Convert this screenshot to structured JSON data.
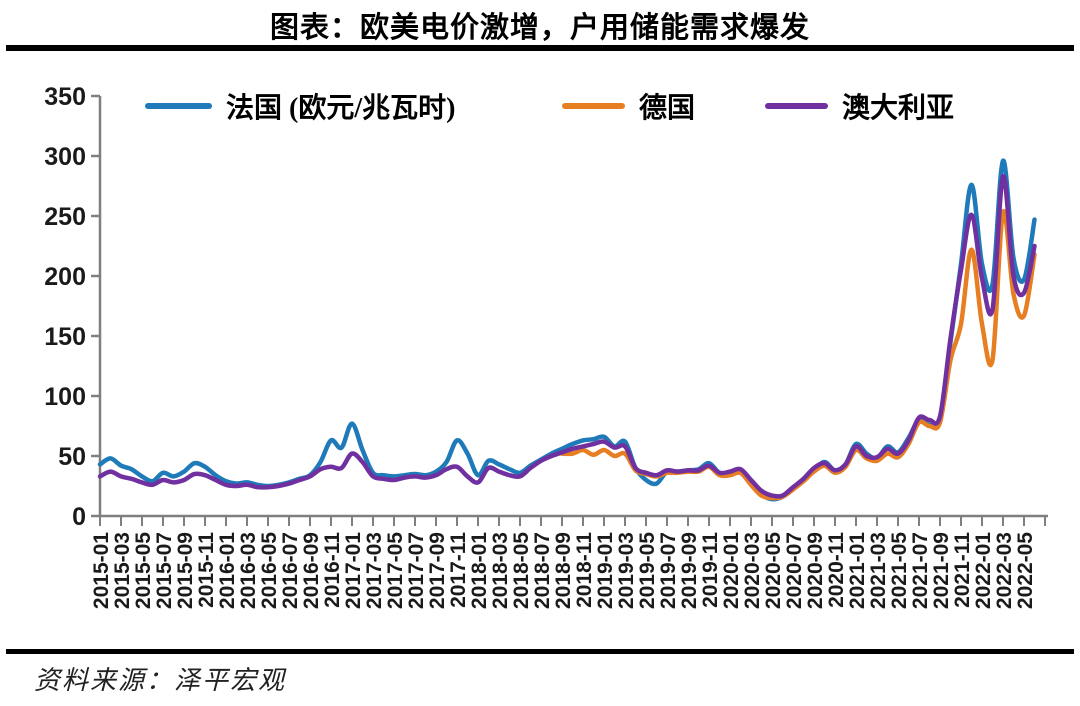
{
  "page": {
    "title": "图表：欧美电价激增，户用储能需求爆发",
    "source": "资料来源：泽平宏观"
  },
  "chart_data": {
    "type": "line",
    "title": "图表：欧美电价激增，户用储能需求爆发",
    "unit": "欧元/兆瓦时",
    "x_start": "2015-01",
    "x_end": "2022-06",
    "x_tick_labels": [
      "2015-01",
      "2015-03",
      "2015-05",
      "2015-07",
      "2015-09",
      "2015-11",
      "2016-01",
      "2016-03",
      "2016-05",
      "2016-07",
      "2016-09",
      "2016-11",
      "2017-01",
      "2017-03",
      "2017-05",
      "2017-07",
      "2017-09",
      "2017-11",
      "2018-01",
      "2018-03",
      "2018-05",
      "2018-07",
      "2018-09",
      "2018-11",
      "2019-01",
      "2019-03",
      "2019-05",
      "2019-07",
      "2019-09",
      "2019-11",
      "2020-01",
      "2020-03",
      "2020-05",
      "2020-07",
      "2020-09",
      "2020-11",
      "2021-01",
      "2021-03",
      "2021-05",
      "2021-07",
      "2021-09",
      "2021-11",
      "2022-01",
      "2022-03",
      "2022-05"
    ],
    "ylim": [
      0,
      350
    ],
    "y_ticks": [
      0,
      50,
      100,
      150,
      200,
      250,
      300,
      350
    ],
    "grid": false,
    "legend_position": "top",
    "axis_color": "#7f7f7f",
    "tick_label_color": "#1a1a1a",
    "series": [
      {
        "name": "法国 (欧元/兆瓦时)",
        "color": "#1E7AB8",
        "start": "2015-01",
        "monthly_values": [
          43,
          48,
          42,
          39,
          33,
          29,
          36,
          33,
          37,
          44,
          41,
          34,
          29,
          27,
          28,
          26,
          25,
          26,
          28,
          31,
          34,
          45,
          63,
          57,
          77,
          55,
          36,
          34,
          33,
          34,
          35,
          34,
          37,
          45,
          63,
          52,
          34,
          46,
          43,
          39,
          36,
          42,
          47,
          52,
          56,
          60,
          63,
          64,
          66,
          58,
          62,
          40,
          30,
          27,
          37,
          37,
          38,
          39,
          44,
          36,
          36,
          38,
          28,
          18,
          14,
          16,
          23,
          30,
          38,
          45,
          38,
          43,
          60,
          52,
          48,
          58,
          53,
          65,
          80,
          76,
          80,
          145,
          210,
          276,
          210,
          193,
          296,
          215,
          197,
          247
        ]
      },
      {
        "name": "德国",
        "color": "#E87E22",
        "start": "2018-09",
        "monthly_values": [
          52,
          52,
          55,
          51,
          55,
          50,
          52,
          38,
          35,
          33,
          36,
          36,
          37,
          37,
          41,
          34,
          34,
          36,
          26,
          17,
          15,
          16,
          22,
          29,
          37,
          42,
          36,
          41,
          55,
          48,
          46,
          52,
          49,
          60,
          78,
          75,
          78,
          130,
          160,
          222,
          160,
          130,
          253,
          185,
          167,
          218
        ]
      },
      {
        "name": "澳大利亚",
        "color": "#7030A0",
        "start": "2015-01",
        "monthly_values": [
          33,
          37,
          33,
          31,
          28,
          26,
          30,
          28,
          30,
          35,
          34,
          30,
          26,
          25,
          26,
          24,
          24,
          25,
          27,
          30,
          33,
          39,
          41,
          40,
          52,
          45,
          33,
          31,
          30,
          32,
          33,
          32,
          34,
          39,
          41,
          33,
          28,
          40,
          37,
          34,
          33,
          40,
          46,
          50,
          53,
          56,
          58,
          60,
          62,
          57,
          58,
          40,
          36,
          34,
          38,
          37,
          38,
          38,
          42,
          36,
          37,
          39,
          30,
          21,
          17,
          17,
          24,
          31,
          40,
          44,
          38,
          43,
          58,
          50,
          49,
          56,
          52,
          63,
          82,
          80,
          83,
          148,
          205,
          251,
          198,
          172,
          283,
          200,
          186,
          225
        ]
      }
    ]
  }
}
